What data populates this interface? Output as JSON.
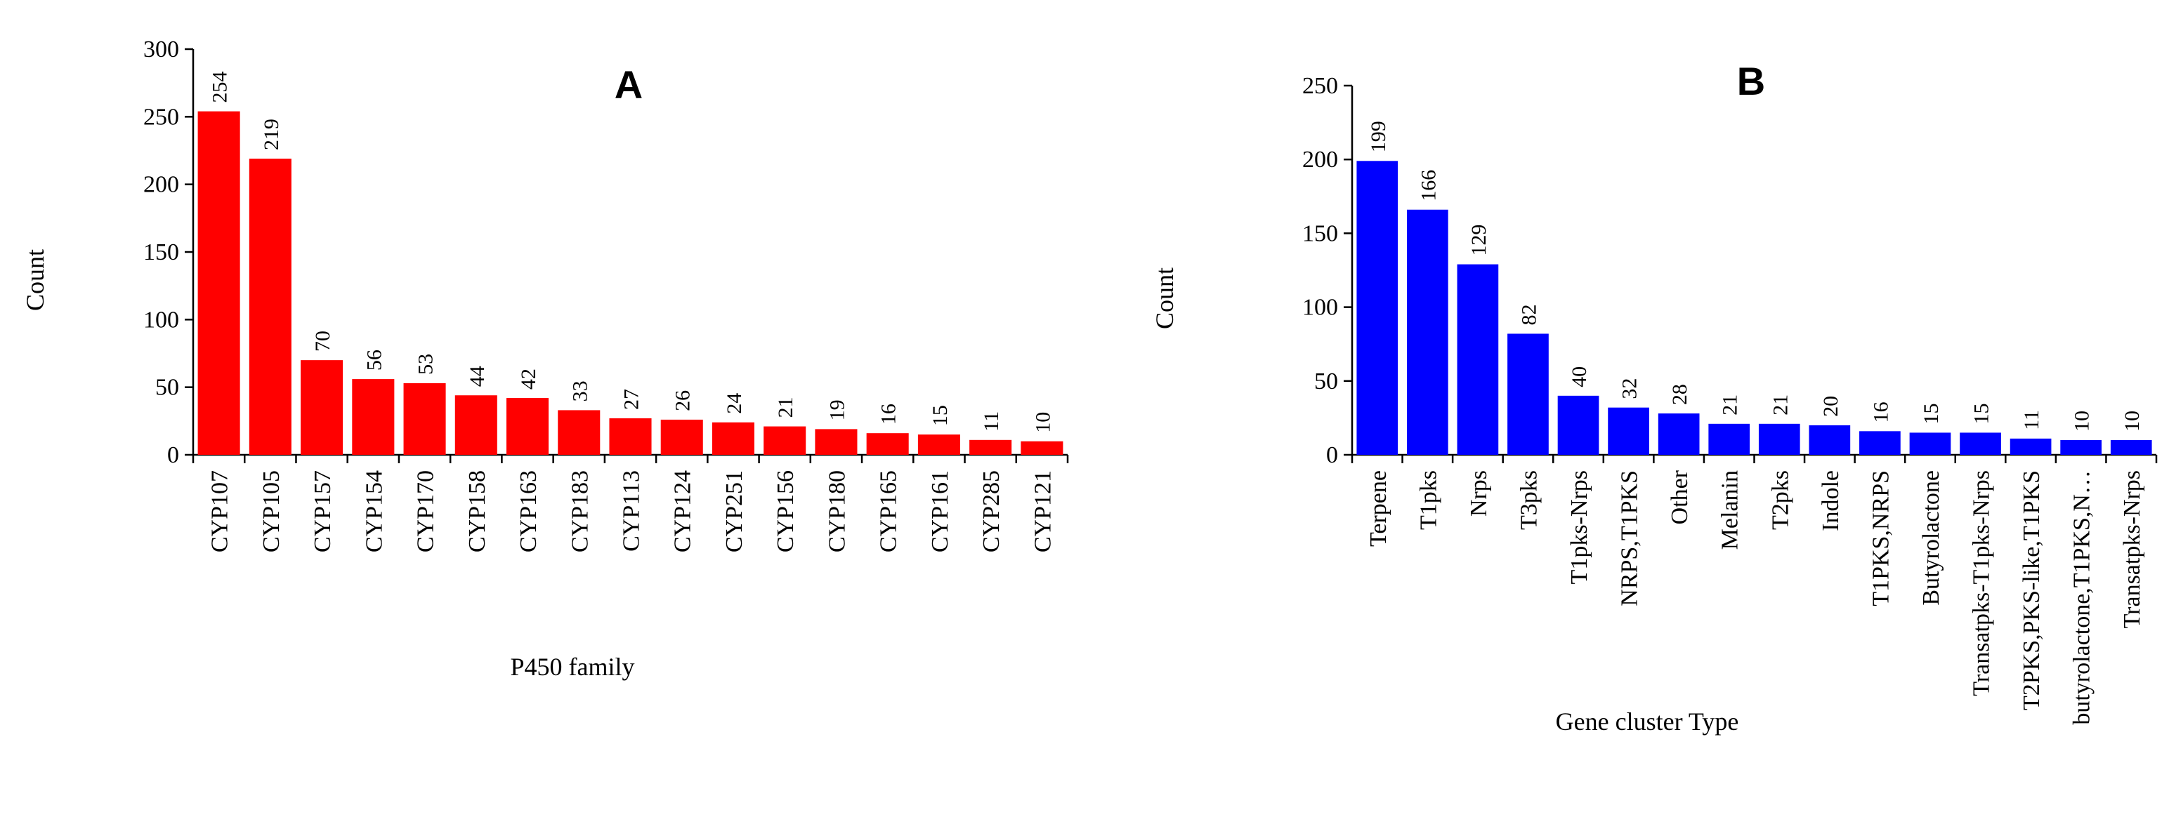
{
  "chart_data": [
    {
      "type": "bar",
      "title": "A",
      "xlabel": "P450 family",
      "ylabel": "Count",
      "ylim": [
        0,
        300
      ],
      "yticks": [
        0,
        50,
        100,
        150,
        200,
        250,
        300
      ],
      "grid": false,
      "data_labels": true,
      "color": "#ff0000",
      "categories": [
        "CYP107",
        "CYP105",
        "CYP157",
        "CYP154",
        "CYP170",
        "CYP158",
        "CYP163",
        "CYP183",
        "CYP113",
        "CYP124",
        "CYP251",
        "CYP156",
        "CYP180",
        "CYP165",
        "CYP161",
        "CYP285",
        "CYP121"
      ],
      "values": [
        254,
        219,
        70,
        56,
        53,
        44,
        42,
        33,
        27,
        26,
        24,
        21,
        19,
        16,
        15,
        11,
        10
      ]
    },
    {
      "type": "bar",
      "title": "B",
      "xlabel": "Gene cluster Type",
      "ylabel": "Count",
      "ylim": [
        0,
        250
      ],
      "yticks": [
        0,
        50,
        100,
        150,
        200,
        250
      ],
      "grid": false,
      "data_labels": true,
      "color": "#0000ff",
      "categories": [
        "Terpene",
        "T1pks",
        "Nrps",
        "T3pks",
        "T1pks-Nrps",
        "NRPS,T1PKS",
        "Other",
        "Melanin",
        "T2pks",
        "Indole",
        "T1PKS,NRPS",
        "Butyrolactone",
        "Transatpks-T1pks-Nrps",
        "T2PKS,PKS-like,T1PKS",
        "butyrolactone,T1PKS,N…",
        "Transatpks-Nrps"
      ],
      "values": [
        199,
        166,
        129,
        82,
        40,
        32,
        28,
        21,
        21,
        20,
        16,
        15,
        15,
        11,
        10,
        10
      ]
    }
  ]
}
